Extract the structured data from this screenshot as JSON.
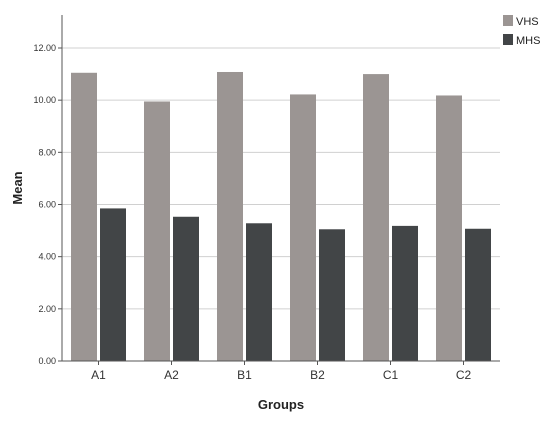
{
  "chart_data": {
    "type": "bar",
    "categories": [
      "A1",
      "A2",
      "B1",
      "B2",
      "C1",
      "C2"
    ],
    "series": [
      {
        "name": "VHS",
        "color": "#9b9593",
        "values": [
          11.05,
          9.95,
          11.08,
          10.22,
          11.0,
          10.18
        ]
      },
      {
        "name": "MHS",
        "color": "#424547",
        "values": [
          5.85,
          5.53,
          5.28,
          5.05,
          5.18,
          5.07
        ]
      }
    ],
    "xlabel": "Groups",
    "ylabel": "Mean",
    "ylim": [
      0,
      12
    ],
    "yticks": [
      "0.00",
      "2.00",
      "4.00",
      "6.00",
      "8.00",
      "10.00",
      "12.00"
    ],
    "grid": true,
    "legend_position": "top-right"
  }
}
